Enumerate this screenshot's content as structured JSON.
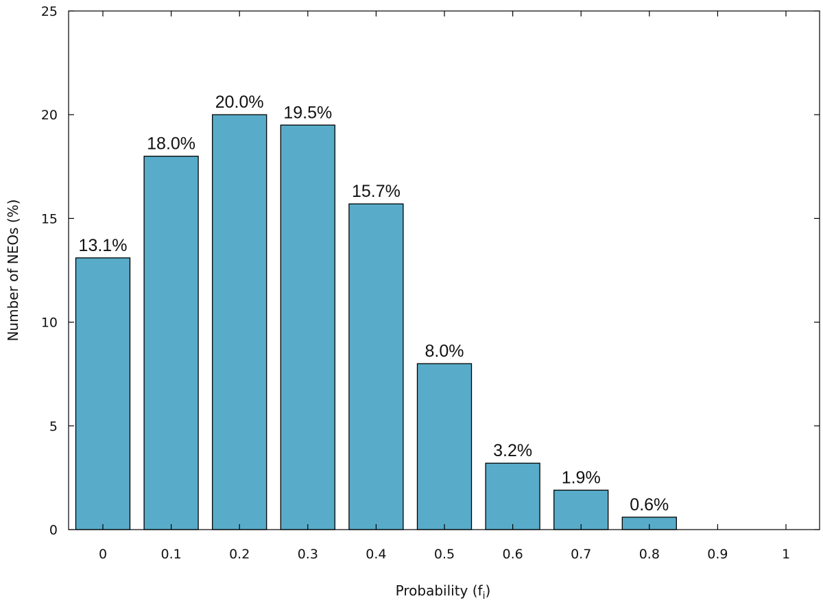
{
  "chart_data": {
    "type": "bar",
    "categories": [
      "0",
      "0.1",
      "0.2",
      "0.3",
      "0.4",
      "0.5",
      "0.6",
      "0.7",
      "0.8",
      "0.9",
      "1"
    ],
    "values": [
      13.1,
      18.0,
      20.0,
      19.5,
      15.7,
      8.0,
      3.2,
      1.9,
      0.6,
      0,
      0
    ],
    "data_labels": [
      "13.1%",
      "18.0%",
      "20.0%",
      "19.5%",
      "15.7%",
      "8.0%",
      "3.2%",
      "1.9%",
      "0.6%",
      "",
      ""
    ],
    "title": "",
    "xlabel_main": "Probability (f",
    "xlabel_sub": "i",
    "xlabel_close": ")",
    "ylabel": "Number of NEOs (%)",
    "ylim": [
      0,
      25
    ],
    "yticks": [
      "0",
      "5",
      "10",
      "15",
      "20",
      "25"
    ],
    "bar_color": "#58acc9",
    "grid": false,
    "legend": "none"
  }
}
